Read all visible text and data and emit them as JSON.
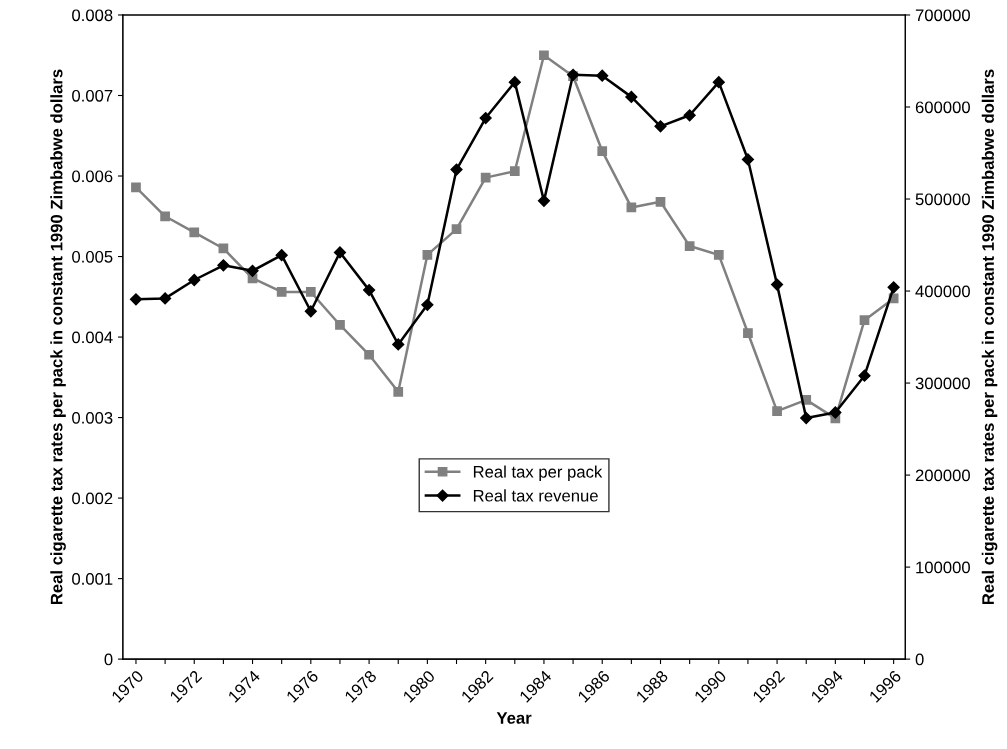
{
  "chart_data": {
    "type": "line",
    "xlabel": "Year",
    "ylabel": "Real cigarette tax rates per pack in constant 1990 Zimbabwe dollars",
    "y2label": "Real cigarette tax rates per pack in constant 1990 Zimbabwe dollars",
    "categories": [
      "1970",
      null,
      "1972",
      null,
      "1974",
      null,
      "1976",
      null,
      "1978",
      null,
      "1980",
      null,
      "1982",
      null,
      "1984",
      null,
      "1986",
      null,
      "1988",
      null,
      "1990",
      null,
      "1992",
      null,
      "1994",
      null,
      "1996"
    ],
    "series": [
      {
        "name": "Real tax per pack",
        "color": "#808080",
        "marker": "square",
        "values": [
          0.00586,
          0.0055,
          0.0053,
          0.0051,
          0.00473,
          0.00456,
          0.00456,
          0.00415,
          0.00378,
          0.00332,
          0.00502,
          0.00534,
          0.00598,
          0.00606,
          0.0075,
          0.00724,
          0.00631,
          0.00561,
          0.00568,
          0.00513,
          0.00502,
          0.00405,
          0.00308,
          0.00322,
          0.00299,
          0.00421,
          0.00448
        ]
      },
      {
        "name": "Real tax revenue",
        "color": "#000000",
        "marker": "diamond",
        "axis": "y2",
        "values": [
          391000,
          392000,
          412000,
          428000,
          422000,
          439000,
          378000,
          442000,
          401000,
          342000,
          385000,
          532000,
          588000,
          627000,
          498000,
          635000,
          634000,
          611000,
          579000,
          591000,
          627000,
          543000,
          407000,
          262000,
          268000,
          308000,
          404000
        ]
      }
    ],
    "ylim": [
      0,
      0.008
    ],
    "yticks": [
      0,
      0.001,
      0.002,
      0.003,
      0.004,
      0.005,
      0.006,
      0.007,
      0.008
    ],
    "y2lim": [
      0,
      700000
    ],
    "y2ticks": [
      0,
      100000,
      200000,
      300000,
      400000,
      500000,
      600000,
      700000
    ],
    "grid": false,
    "legend": "center"
  }
}
